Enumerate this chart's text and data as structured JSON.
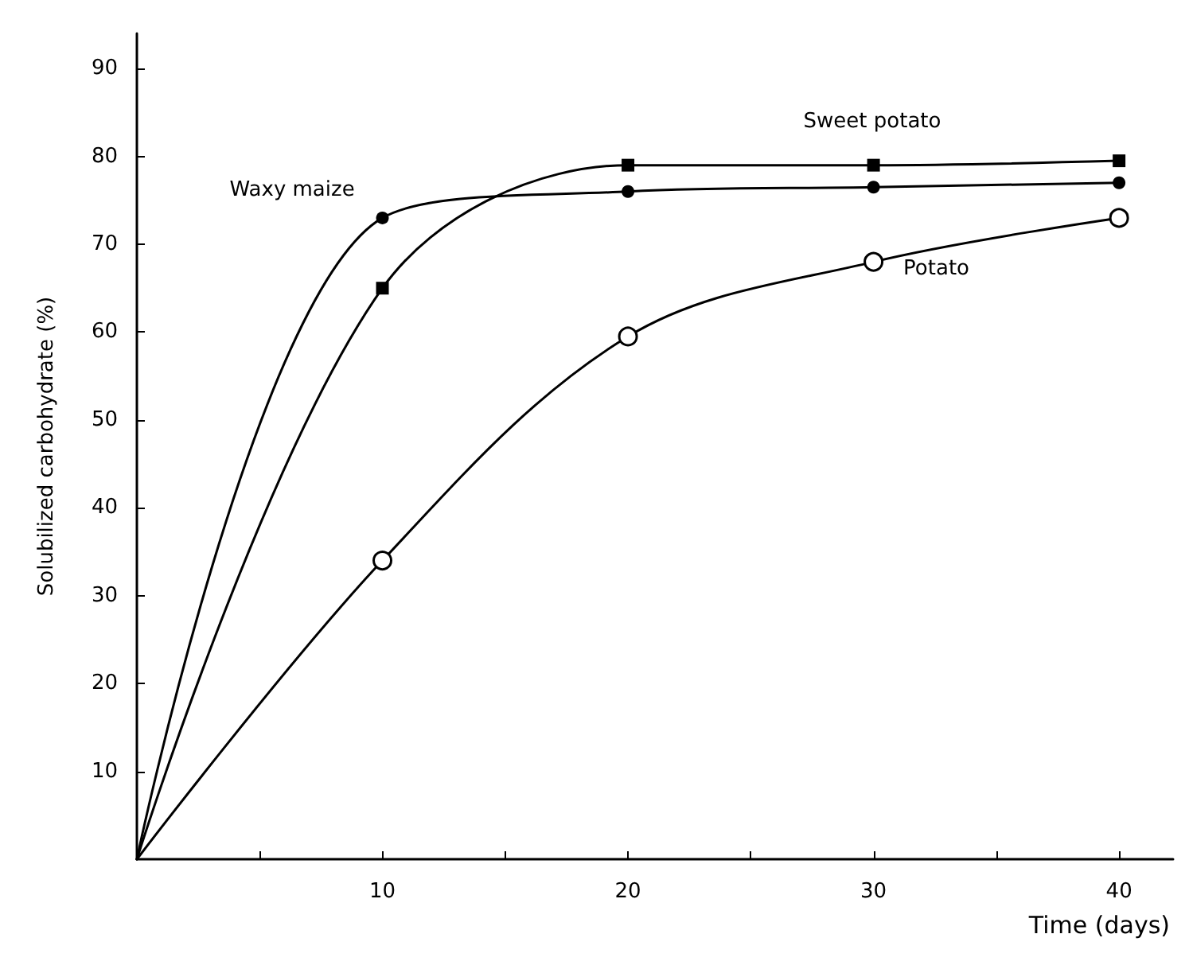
{
  "chart_data": {
    "type": "line",
    "xlabel": "Time (days)",
    "ylabel": "Solubilized carbohydrate (%)",
    "x": [
      0,
      10,
      20,
      30,
      40
    ],
    "series": [
      {
        "name": "Waxy maize",
        "color": "#000000",
        "marker": "circle",
        "values": [
          0,
          73,
          76,
          76.5,
          77
        ]
      },
      {
        "name": "Sweet potato",
        "color": "#000000",
        "marker": "square",
        "values": [
          0,
          65,
          79,
          79,
          79.5
        ]
      },
      {
        "name": "Potato",
        "color": "#000000",
        "marker": "circle",
        "values": [
          0,
          34,
          59.5,
          68,
          73
        ]
      }
    ],
    "xlim": [
      0,
      42.2
    ],
    "ylim": [
      0,
      94
    ],
    "xticks": [
      {
        "value": 5,
        "label": null
      },
      10,
      {
        "value": 15,
        "label": null
      },
      20,
      {
        "value": 25,
        "label": null
      },
      30,
      {
        "value": 35,
        "label": null
      },
      40
    ],
    "yticks": [
      10,
      20,
      30,
      40,
      50,
      60,
      70,
      80,
      90
    ],
    "grid": false,
    "legend": false,
    "line_style": "solid"
  }
}
